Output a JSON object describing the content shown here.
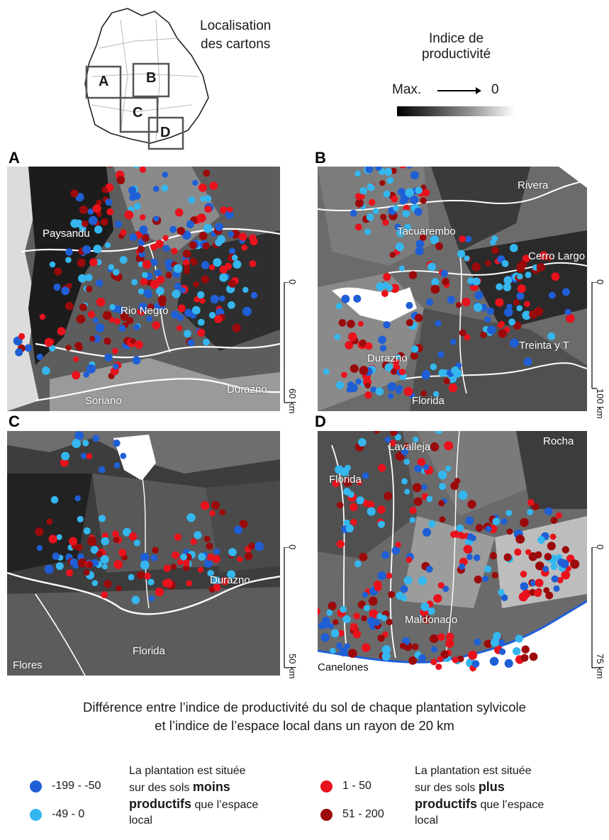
{
  "header": {
    "localisation_title_line1": "Localisation",
    "localisation_title_line2": "des cartons",
    "index_title_line1": "Indice de",
    "index_title_line2": "productivité",
    "gradient_max": "Max.",
    "gradient_zero": "0",
    "inset_letters": [
      "A",
      "B",
      "C",
      "D"
    ]
  },
  "panels": {
    "A": {
      "letter": "A",
      "places": [
        "Paysandu",
        "Rio Negro",
        "Soriano",
        "Durazno"
      ],
      "scale": {
        "zero": "0",
        "end": "60 km"
      }
    },
    "B": {
      "letter": "B",
      "places": [
        "Rivera",
        "Tacuarembo",
        "Cerro Largo",
        "Durazno",
        "Treinta y T",
        "Florida"
      ],
      "scale": {
        "zero": "0",
        "end": "100 km"
      }
    },
    "C": {
      "letter": "C",
      "places": [
        "Durazno",
        "Flores",
        "Florida"
      ],
      "scale": {
        "zero": "0",
        "end": "50 km"
      }
    },
    "D": {
      "letter": "D",
      "places": [
        "Lavalleja",
        "Rocha",
        "Florida",
        "Maldonado",
        "Canelones"
      ],
      "scale": {
        "zero": "0",
        "end": "75 km"
      }
    }
  },
  "caption": {
    "line1": "Différence entre l’indice de productivité du sol de chaque plantation sylvicole",
    "line2": "et l’indice de l’espace local dans un rayon de 20 km"
  },
  "legend": {
    "classes": [
      {
        "label": "-199 - -50",
        "color": "#1f5fd6"
      },
      {
        "label": "-49 - 0",
        "color": "#35b6ee"
      },
      {
        "label": "1 - 50",
        "color": "#e8121c"
      },
      {
        "label": "51 - 200",
        "color": "#9b0a0a"
      }
    ],
    "less_text": {
      "pre": "La plantation est située",
      "line2_pre": "sur des sols ",
      "bold1": "moins",
      "bold2": "productifs",
      "post": " que l’espace",
      "last": "local"
    },
    "more_text": {
      "pre": "La plantation est située",
      "line2_pre": "sur des sols ",
      "bold1": "plus",
      "bold2": "productifs",
      "post": " que l’espace",
      "last": "local"
    }
  }
}
